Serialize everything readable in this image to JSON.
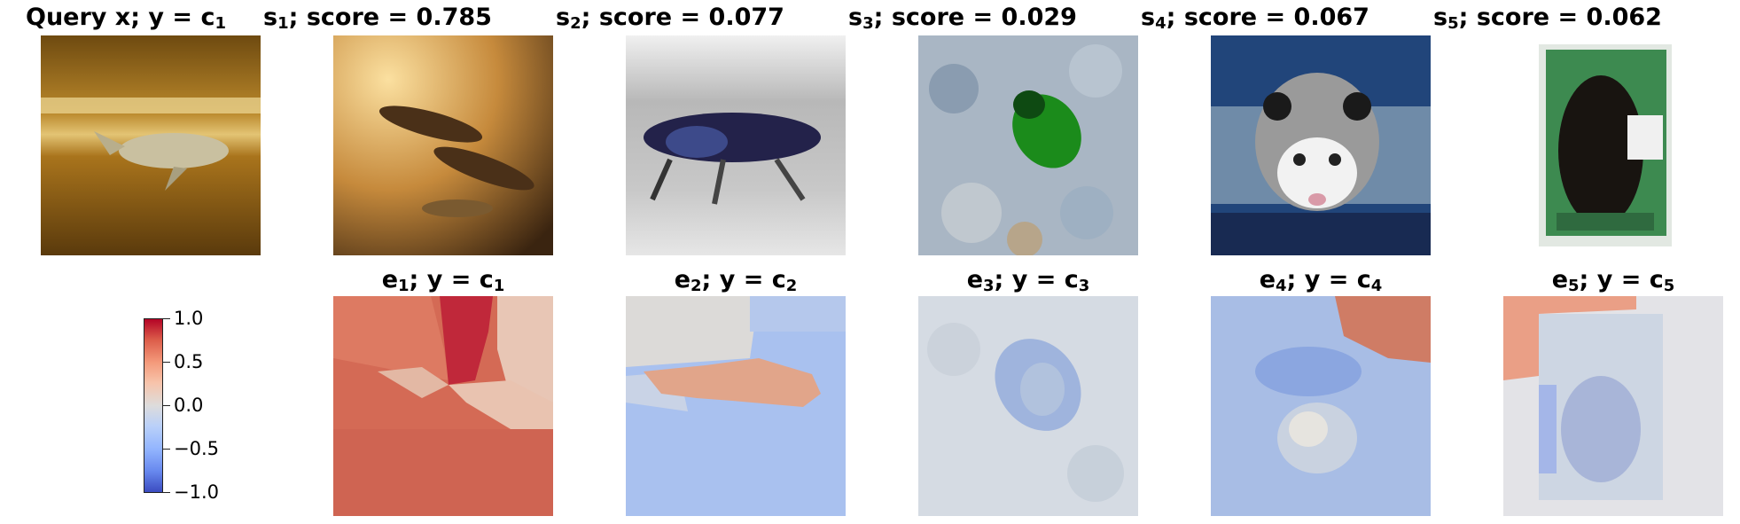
{
  "row1": [
    {
      "base": "Query x; y = c",
      "sub": "1"
    },
    {
      "base": "s",
      "sub": "1",
      "rest": "; score = 0.785"
    },
    {
      "base": "s",
      "sub": "2",
      "rest": "; score = 0.077"
    },
    {
      "base": "s",
      "sub": "3",
      "rest": "; score = 0.029"
    },
    {
      "base": "s",
      "sub": "4",
      "rest": "; score = 0.067"
    },
    {
      "base": "s",
      "sub": "5",
      "rest": "; score = 0.062"
    }
  ],
  "row2": [
    {
      "base": "e",
      "sub": "1",
      "rest": "; y = c",
      "sub2": "1"
    },
    {
      "base": "e",
      "sub": "2",
      "rest": "; y = c",
      "sub2": "2"
    },
    {
      "base": "e",
      "sub": "3",
      "rest": "; y = c",
      "sub2": "3"
    },
    {
      "base": "e",
      "sub": "4",
      "rest": "; y = c",
      "sub2": "4"
    },
    {
      "base": "e",
      "sub": "5",
      "rest": "; y = c",
      "sub2": "5"
    }
  ],
  "colorbar": {
    "ticks": [
      "1.0",
      "0.5",
      "0.0",
      "−0.5",
      "−1.0"
    ],
    "colormap": "coolwarm",
    "colors": {
      "high": "#b40426",
      "mid": "#dddcdc",
      "low": "#3b4cc0"
    }
  },
  "images": {
    "query": "underwater-dolphin-photo",
    "s1": "two-dolphins-photo",
    "s2": "dark-insect-on-gray-photo",
    "s3": "green-beetle-on-rocks-photo",
    "s4": "opossum-face-photo",
    "s5": "bear-on-card-photo"
  }
}
